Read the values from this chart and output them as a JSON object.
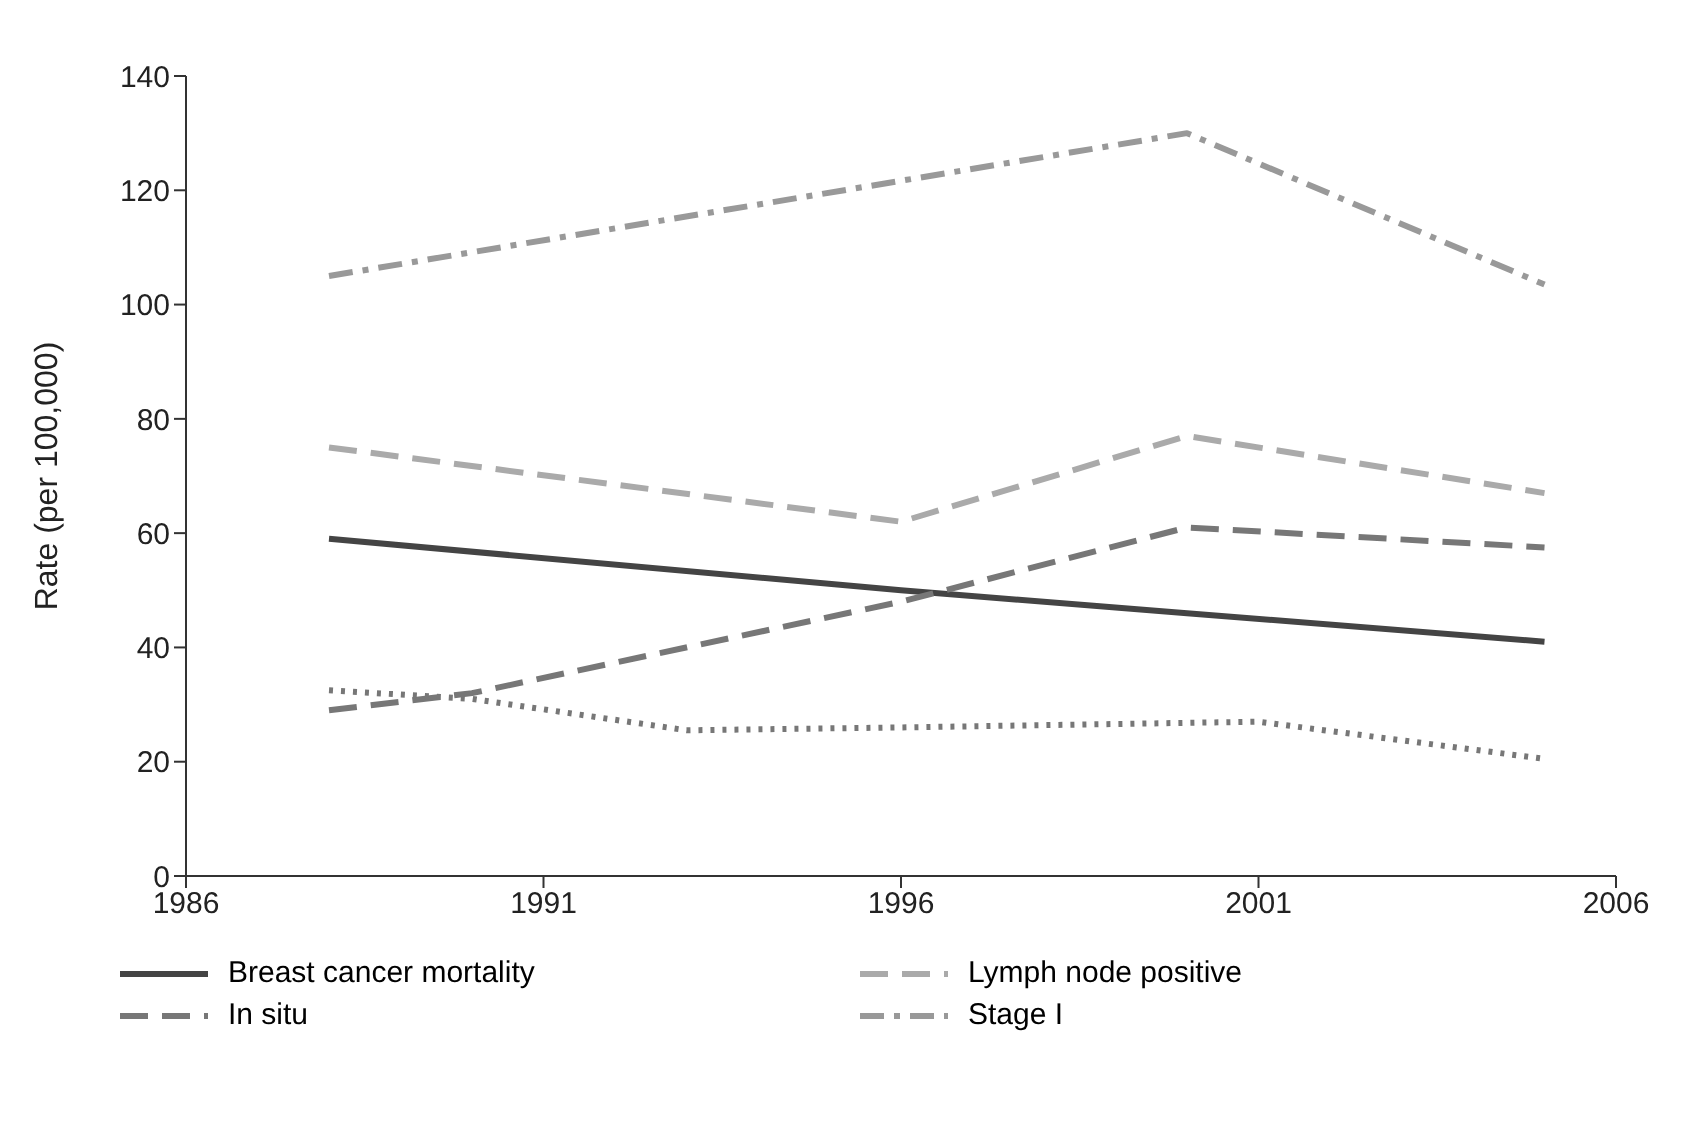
{
  "chart_data": {
    "type": "line",
    "ylabel": "Rate (per 100,000)",
    "xlim": [
      1986,
      2006
    ],
    "xticks": [
      1986,
      1991,
      1996,
      2001,
      2006
    ],
    "ylim": [
      0,
      140
    ],
    "yticks": [
      0,
      20,
      40,
      60,
      80,
      100,
      120,
      140
    ],
    "grid": false,
    "legend": "bottom",
    "marker": "none",
    "series": [
      {
        "name": "Breast cancer mortality",
        "color": "#444444",
        "line_style": "solid",
        "x": [
          1988,
          1996,
          2000,
          2005
        ],
        "values": [
          59,
          50,
          46,
          41
        ]
      },
      {
        "name": "Lymph node positive",
        "color": "#aaaaaa",
        "line_style": "dashed",
        "x": [
          1988,
          1996,
          2000,
          2005
        ],
        "values": [
          75,
          62,
          77,
          67
        ]
      },
      {
        "name": "In situ",
        "color": "#777777",
        "line_style": "dashed",
        "x": [
          1988,
          1990,
          1996,
          2000,
          2005
        ],
        "values": [
          29,
          32,
          48,
          61,
          57.5
        ]
      },
      {
        "name": "Stage I",
        "color": "#999999",
        "line_style": "dashdot",
        "x": [
          1988,
          2000,
          2005
        ],
        "values": [
          105,
          130,
          103.5
        ]
      },
      {
        "color": "#777777",
        "line_style": "dotted",
        "x": [
          1988,
          1990,
          1993,
          1996,
          2001,
          2005
        ],
        "values": [
          32.5,
          31,
          25.5,
          26,
          27,
          20.5
        ]
      }
    ]
  }
}
